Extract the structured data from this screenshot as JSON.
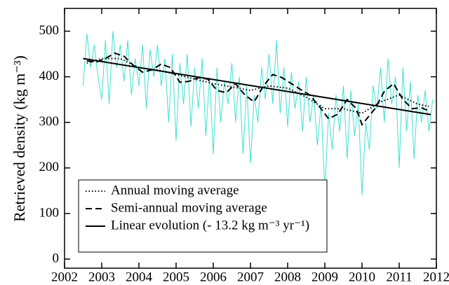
{
  "chart_data": {
    "type": "line",
    "y_label": "Retrieved density (kg m⁻³)",
    "xlim": [
      2002,
      2012
    ],
    "xticks": [
      2002,
      2003,
      2004,
      2005,
      2006,
      2007,
      2008,
      2009,
      2010,
      2011,
      2012
    ],
    "ylim": [
      -20,
      550
    ],
    "yticks": [
      0,
      100,
      200,
      300,
      400,
      500
    ],
    "legend": "lower left",
    "series": [
      {
        "color": "#40e0d0",
        "style": "solid",
        "x": [
          2002.5,
          2002.6,
          2002.7,
          2002.8,
          2002.9,
          2003.0,
          2003.1,
          2003.2,
          2003.3,
          2003.4,
          2003.5,
          2003.6,
          2003.7,
          2003.8,
          2003.9,
          2004.0,
          2004.1,
          2004.2,
          2004.3,
          2004.4,
          2004.5,
          2004.6,
          2004.7,
          2004.8,
          2004.9,
          2005.0,
          2005.1,
          2005.2,
          2005.3,
          2005.4,
          2005.5,
          2005.6,
          2005.7,
          2005.8,
          2005.9,
          2006.0,
          2006.1,
          2006.2,
          2006.3,
          2006.4,
          2006.5,
          2006.6,
          2006.7,
          2006.8,
          2006.9,
          2007.0,
          2007.1,
          2007.2,
          2007.3,
          2007.4,
          2007.5,
          2007.6,
          2007.7,
          2007.8,
          2007.9,
          2008.0,
          2008.1,
          2008.2,
          2008.3,
          2008.4,
          2008.5,
          2008.6,
          2008.7,
          2008.8,
          2008.9,
          2009.0,
          2009.1,
          2009.2,
          2009.3,
          2009.4,
          2009.5,
          2009.6,
          2009.7,
          2009.8,
          2009.9,
          2010.0,
          2010.1,
          2010.2,
          2010.3,
          2010.4,
          2010.5,
          2010.6,
          2010.7,
          2010.8,
          2010.9,
          2011.0,
          2011.1,
          2011.2,
          2011.3,
          2011.4,
          2011.5,
          2011.6,
          2011.7,
          2011.8,
          2011.9
        ],
        "values": [
          380,
          495,
          420,
          470,
          400,
          350,
          480,
          340,
          500,
          420,
          470,
          390,
          480,
          360,
          440,
          380,
          470,
          330,
          460,
          400,
          470,
          380,
          440,
          300,
          450,
          260,
          430,
          340,
          450,
          290,
          420,
          330,
          440,
          270,
          400,
          230,
          420,
          300,
          390,
          340,
          430,
          300,
          400,
          230,
          380,
          210,
          360,
          300,
          420,
          350,
          450,
          340,
          480,
          320,
          420,
          290,
          410,
          330,
          390,
          280,
          400,
          300,
          360,
          250,
          340,
          150,
          320,
          240,
          360,
          280,
          380,
          220,
          370,
          270,
          340,
          140,
          300,
          240,
          380,
          330,
          420,
          300,
          440,
          340,
          400,
          200,
          420,
          280,
          390,
          220,
          360,
          300,
          370,
          280,
          350
        ]
      },
      {
        "name": "Annual moving average",
        "color": "#000000",
        "style": "dotted",
        "x": [
          2002.6,
          2003.0,
          2003.5,
          2004.0,
          2004.5,
          2005.0,
          2005.5,
          2006.0,
          2006.5,
          2007.0,
          2007.5,
          2008.0,
          2008.5,
          2009.0,
          2009.5,
          2010.0,
          2010.5,
          2011.0,
          2011.5,
          2011.8
        ],
        "values": [
          430,
          440,
          440,
          420,
          415,
          405,
          395,
          385,
          378,
          370,
          380,
          375,
          355,
          330,
          330,
          320,
          345,
          360,
          340,
          335
        ]
      },
      {
        "name": "Semi-annual moving average",
        "color": "#000000",
        "style": "dashed",
        "x": [
          2002.6,
          2002.85,
          2003.1,
          2003.35,
          2003.6,
          2003.85,
          2004.1,
          2004.35,
          2004.6,
          2004.85,
          2005.1,
          2005.35,
          2005.6,
          2005.85,
          2006.1,
          2006.35,
          2006.6,
          2006.85,
          2007.1,
          2007.35,
          2007.6,
          2007.85,
          2008.1,
          2008.35,
          2008.6,
          2008.85,
          2009.1,
          2009.35,
          2009.6,
          2009.85,
          2010.0,
          2010.35,
          2010.6,
          2010.85,
          2011.1,
          2011.35,
          2011.6,
          2011.8
        ],
        "values": [
          435,
          432,
          440,
          452,
          445,
          425,
          410,
          415,
          428,
          420,
          388,
          390,
          398,
          395,
          370,
          365,
          385,
          360,
          345,
          380,
          405,
          398,
          385,
          372,
          360,
          335,
          308,
          318,
          350,
          330,
          295,
          330,
          368,
          385,
          350,
          330,
          332,
          325
        ]
      },
      {
        "name": "Linear evolution (- 13.2 kg m⁻³ yr⁻¹)",
        "color": "#000000",
        "style": "solid",
        "x": [
          2002.5,
          2011.85
        ],
        "values": [
          440,
          317
        ]
      }
    ]
  }
}
